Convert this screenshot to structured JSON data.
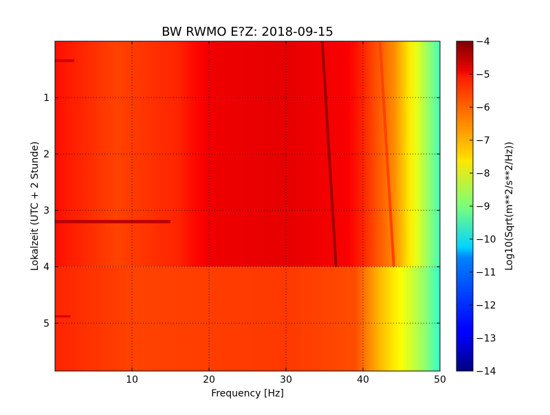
{
  "chart_data": {
    "type": "heatmap",
    "title": "BW RWMO E?Z: 2018-09-15",
    "xlabel": "Frequency [Hz]",
    "ylabel": "Lokalzeit (UTC + 2 Stunde)",
    "xlim": [
      0,
      50
    ],
    "ylim": [
      5.85,
      0
    ],
    "x_ticks": [
      10,
      20,
      30,
      40,
      50
    ],
    "y_ticks": [
      1,
      2,
      3,
      4,
      5
    ],
    "grid": true,
    "colormap": "jet",
    "colorbar": {
      "label": "Log10(Sqrt(m**2/s**2/Hz))",
      "range": [
        -14,
        -4
      ],
      "ticks": [
        -4,
        -5,
        -6,
        -7,
        -8,
        -9,
        -10,
        -11,
        -12,
        -13,
        -14
      ]
    },
    "regions": [
      {
        "y_range": [
          0,
          4
        ],
        "band_values": [
          {
            "x": 0,
            "value": -5.4
          },
          {
            "x": 8,
            "value": -5.9
          },
          {
            "x": 16,
            "value": -5.6
          },
          {
            "x": 20,
            "value": -5.1
          },
          {
            "x": 30,
            "value": -5.0
          },
          {
            "x": 38,
            "value": -5.2
          },
          {
            "x": 40,
            "value": -5.6
          },
          {
            "x": 44,
            "value": -6.6
          },
          {
            "x": 47,
            "value": -8.0
          },
          {
            "x": 50,
            "value": -9.6
          }
        ]
      },
      {
        "y_range": [
          4,
          5.85
        ],
        "band_values": [
          {
            "x": 0,
            "value": -5.6
          },
          {
            "x": 10,
            "value": -5.9
          },
          {
            "x": 30,
            "value": -5.8
          },
          {
            "x": 39,
            "value": -6.0
          },
          {
            "x": 42,
            "value": -7.0
          },
          {
            "x": 45,
            "value": -7.8
          },
          {
            "x": 48,
            "value": -8.8
          },
          {
            "x": 50,
            "value": -9.8
          }
        ]
      }
    ],
    "features": [
      {
        "kind": "line",
        "x_start": 34.7,
        "y_start": 0,
        "x_end": 36.5,
        "y_end": 4,
        "value": -4.3
      },
      {
        "kind": "line",
        "x_start": 42.2,
        "y_start": 0,
        "x_end": 44.0,
        "y_end": 4,
        "value": -5.9
      },
      {
        "kind": "band",
        "x_start": 0,
        "x_end": 15,
        "y_start": 3.17,
        "y_end": 3.23,
        "value": -4.6
      },
      {
        "kind": "band",
        "x_start": 0,
        "x_end": 2.5,
        "y_start": 0.32,
        "y_end": 0.37,
        "value": -4.8
      },
      {
        "kind": "band",
        "x_start": 0,
        "x_end": 2,
        "y_start": 4.86,
        "y_end": 4.9,
        "value": -4.9
      }
    ]
  }
}
